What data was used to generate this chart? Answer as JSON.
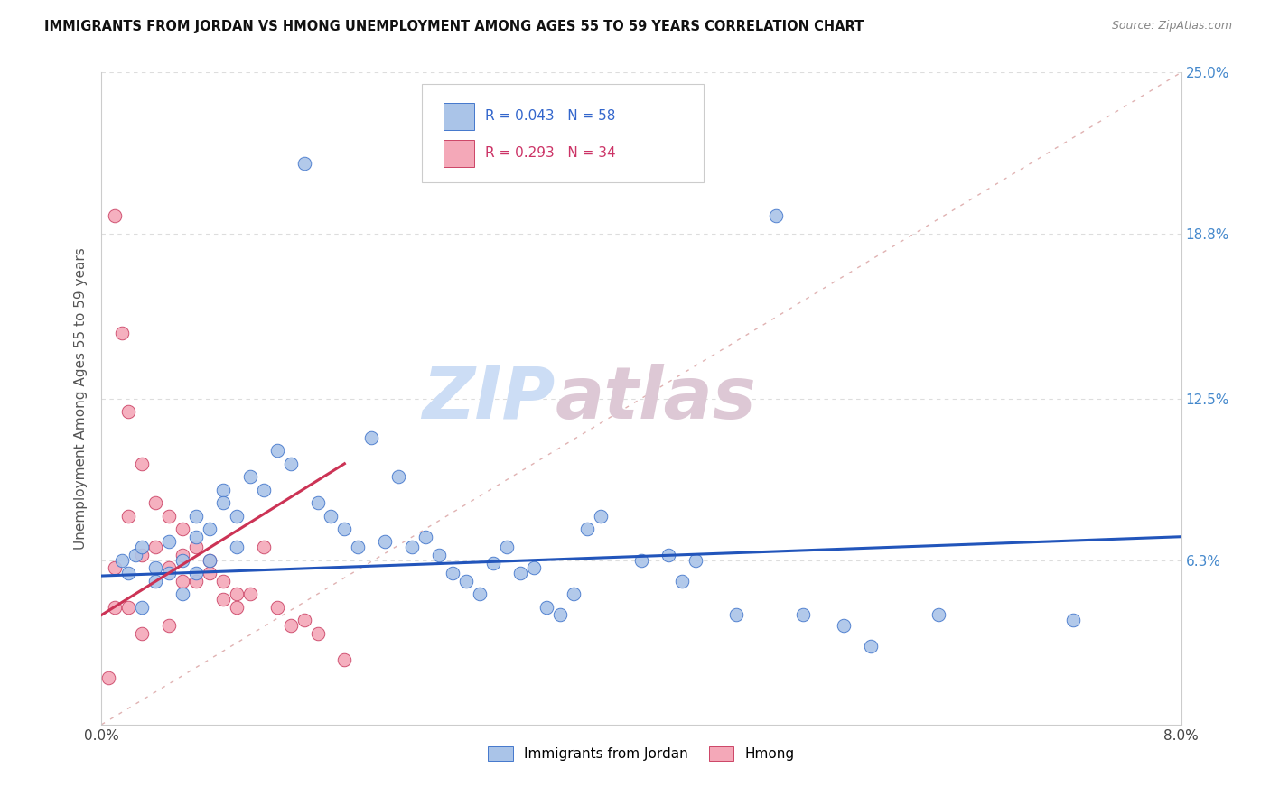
{
  "title": "IMMIGRANTS FROM JORDAN VS HMONG UNEMPLOYMENT AMONG AGES 55 TO 59 YEARS CORRELATION CHART",
  "source": "Source: ZipAtlas.com",
  "ylabel_left": "Unemployment Among Ages 55 to 59 years",
  "xlim": [
    0.0,
    0.08
  ],
  "ylim": [
    0.0,
    0.25
  ],
  "yticks_right": [
    0.063,
    0.125,
    0.188,
    0.25
  ],
  "ytick_labels_right": [
    "6.3%",
    "12.5%",
    "18.8%",
    "25.0%"
  ],
  "xtick_labels": [
    "0.0%",
    "",
    "",
    "",
    "",
    "",
    "",
    "",
    "8.0%"
  ],
  "series1_color": "#aac4e8",
  "series1_edge": "#4477cc",
  "series2_color": "#f4a8b8",
  "series2_edge": "#cc4466",
  "line1_color": "#2255bb",
  "line2_color": "#cc3355",
  "diag_color": "#ddaaaa",
  "grid_color": "#dddddd",
  "jordan_x": [
    0.0015,
    0.002,
    0.0025,
    0.003,
    0.003,
    0.004,
    0.004,
    0.005,
    0.005,
    0.006,
    0.006,
    0.007,
    0.007,
    0.007,
    0.008,
    0.008,
    0.009,
    0.009,
    0.01,
    0.01,
    0.011,
    0.012,
    0.013,
    0.014,
    0.015,
    0.016,
    0.017,
    0.018,
    0.019,
    0.02,
    0.021,
    0.022,
    0.023,
    0.024,
    0.025,
    0.026,
    0.027,
    0.028,
    0.029,
    0.03,
    0.031,
    0.032,
    0.033,
    0.034,
    0.035,
    0.036,
    0.037,
    0.04,
    0.042,
    0.043,
    0.044,
    0.047,
    0.05,
    0.052,
    0.055,
    0.057,
    0.062,
    0.072
  ],
  "jordan_y": [
    0.063,
    0.058,
    0.065,
    0.045,
    0.068,
    0.055,
    0.06,
    0.058,
    0.07,
    0.063,
    0.05,
    0.072,
    0.058,
    0.08,
    0.063,
    0.075,
    0.09,
    0.085,
    0.08,
    0.068,
    0.095,
    0.09,
    0.105,
    0.1,
    0.215,
    0.085,
    0.08,
    0.075,
    0.068,
    0.11,
    0.07,
    0.095,
    0.068,
    0.072,
    0.065,
    0.058,
    0.055,
    0.05,
    0.062,
    0.068,
    0.058,
    0.06,
    0.045,
    0.042,
    0.05,
    0.075,
    0.08,
    0.063,
    0.065,
    0.055,
    0.063,
    0.042,
    0.195,
    0.042,
    0.038,
    0.03,
    0.042,
    0.04
  ],
  "hmong_x": [
    0.0005,
    0.001,
    0.001,
    0.001,
    0.0015,
    0.002,
    0.002,
    0.002,
    0.003,
    0.003,
    0.003,
    0.004,
    0.004,
    0.005,
    0.005,
    0.005,
    0.006,
    0.006,
    0.006,
    0.007,
    0.007,
    0.008,
    0.008,
    0.009,
    0.009,
    0.01,
    0.01,
    0.011,
    0.012,
    0.013,
    0.014,
    0.015,
    0.016,
    0.018
  ],
  "hmong_y": [
    0.018,
    0.195,
    0.06,
    0.045,
    0.15,
    0.12,
    0.08,
    0.045,
    0.1,
    0.065,
    0.035,
    0.085,
    0.068,
    0.08,
    0.06,
    0.038,
    0.075,
    0.065,
    0.055,
    0.068,
    0.055,
    0.063,
    0.058,
    0.055,
    0.048,
    0.05,
    0.045,
    0.05,
    0.068,
    0.045,
    0.038,
    0.04,
    0.035,
    0.025
  ],
  "jordan_line_x": [
    0.0,
    0.08
  ],
  "jordan_line_y": [
    0.058,
    0.072
  ],
  "hmong_line_x": [
    0.0,
    0.018
  ],
  "hmong_line_y": [
    0.038,
    0.095
  ]
}
